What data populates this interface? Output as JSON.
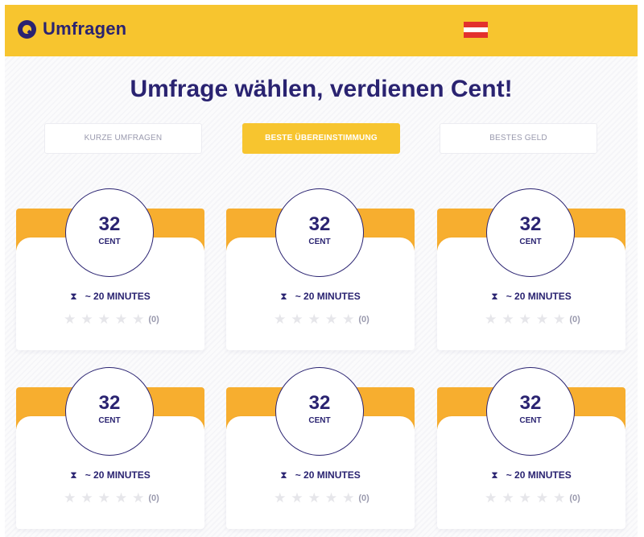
{
  "header": {
    "brand": "Umfragen",
    "logo_icon": "q-logo-icon",
    "flag_icon": "austria-flag-icon",
    "colors": {
      "header_bg": "#f7c52f",
      "brand": "#2a2371",
      "flag_red": "#e3312d"
    }
  },
  "title": {
    "prefix": "Umfrage wählen, verdienen ",
    "highlight": "Cent",
    "suffix": "!"
  },
  "tabs": [
    {
      "label": "KURZE UMFRAGEN",
      "active": false
    },
    {
      "label": "BESTE ÜBEREINSTIMMUNG",
      "active": true
    },
    {
      "label": "BESTES GELD",
      "active": false
    }
  ],
  "cards": [
    {
      "amount": "32",
      "unit": "CENT",
      "time": "~ 20 MINUTES",
      "rating_count": "(0)",
      "rating": 0
    },
    {
      "amount": "32",
      "unit": "CENT",
      "time": "~ 20 MINUTES",
      "rating_count": "(0)",
      "rating": 0
    },
    {
      "amount": "32",
      "unit": "CENT",
      "time": "~ 20 MINUTES",
      "rating_count": "(0)",
      "rating": 0
    },
    {
      "amount": "32",
      "unit": "CENT",
      "time": "~ 20 MINUTES",
      "rating_count": "(0)",
      "rating": 0
    },
    {
      "amount": "32",
      "unit": "CENT",
      "time": "~ 20 MINUTES",
      "rating_count": "(0)",
      "rating": 0
    },
    {
      "amount": "32",
      "unit": "CENT",
      "time": "~ 20 MINUTES",
      "rating_count": "(0)",
      "rating": 0
    }
  ],
  "card_icons": {
    "time": "hourglass-icon",
    "rating": "star-icon"
  },
  "card_colors": {
    "band": "#f7ae2f",
    "active_tab": "#f7c52f"
  }
}
